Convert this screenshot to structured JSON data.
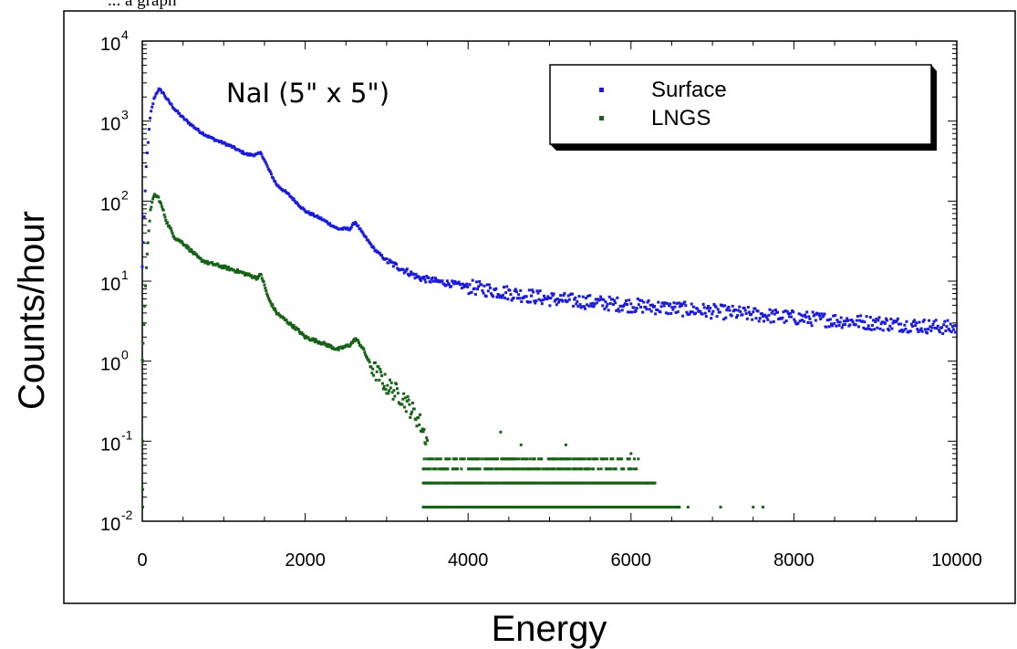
{
  "header_fragment": "... a graph",
  "chart_data": {
    "type": "scatter",
    "title": "",
    "annotation": "NaI (5\" x 5\")",
    "xlabel": "Energy",
    "ylabel": "Counts/hour",
    "xlim": [
      0,
      10000
    ],
    "ylim_log10": [
      -2,
      4
    ],
    "y_scale": "log",
    "x_ticks": [
      0,
      2000,
      4000,
      6000,
      8000,
      10000
    ],
    "x_tick_labels": [
      "0",
      "2000",
      "4000",
      "6000",
      "8000",
      "10000"
    ],
    "y_ticks": [
      {
        "base": "10",
        "exp": "4"
      },
      {
        "base": "10",
        "exp": "3"
      },
      {
        "base": "10",
        "exp": "2"
      },
      {
        "base": "10",
        "exp": "1"
      },
      {
        "base": "10",
        "exp": "0"
      },
      {
        "base": "10",
        "exp": "-1"
      },
      {
        "base": "10",
        "exp": "-2"
      }
    ],
    "legend_position": "top-right",
    "series": [
      {
        "name": "Surface",
        "color": "#1a1ad8",
        "points": [
          [
            0,
            15
          ],
          [
            50,
            300
          ],
          [
            100,
            1200
          ],
          [
            150,
            2000
          ],
          [
            200,
            2500
          ],
          [
            250,
            2300
          ],
          [
            300,
            1900
          ],
          [
            400,
            1400
          ],
          [
            500,
            1100
          ],
          [
            600,
            900
          ],
          [
            700,
            750
          ],
          [
            800,
            650
          ],
          [
            900,
            580
          ],
          [
            1000,
            530
          ],
          [
            1100,
            480
          ],
          [
            1200,
            420
          ],
          [
            1300,
            380
          ],
          [
            1400,
            380
          ],
          [
            1460,
            400
          ],
          [
            1550,
            250
          ],
          [
            1650,
            160
          ],
          [
            1800,
            120
          ],
          [
            2000,
            75
          ],
          [
            2200,
            60
          ],
          [
            2400,
            45
          ],
          [
            2550,
            45
          ],
          [
            2615,
            55
          ],
          [
            2700,
            40
          ],
          [
            2850,
            25
          ],
          [
            3000,
            18
          ],
          [
            3200,
            14
          ],
          [
            3400,
            11
          ],
          [
            3600,
            10
          ],
          [
            4000,
            8.5
          ],
          [
            5000,
            6
          ],
          [
            6000,
            5
          ],
          [
            7000,
            4.2
          ],
          [
            8000,
            3.5
          ],
          [
            9000,
            3
          ],
          [
            10000,
            2.6
          ]
        ]
      },
      {
        "name": "LNGS",
        "color": "#176217",
        "points": [
          [
            0,
            1
          ],
          [
            50,
            15
          ],
          [
            100,
            80
          ],
          [
            150,
            120
          ],
          [
            200,
            110
          ],
          [
            250,
            80
          ],
          [
            300,
            55
          ],
          [
            400,
            35
          ],
          [
            500,
            30
          ],
          [
            600,
            24
          ],
          [
            700,
            19
          ],
          [
            800,
            17
          ],
          [
            900,
            16
          ],
          [
            1000,
            15
          ],
          [
            1100,
            14
          ],
          [
            1200,
            13
          ],
          [
            1300,
            12
          ],
          [
            1400,
            11
          ],
          [
            1460,
            12
          ],
          [
            1550,
            6
          ],
          [
            1650,
            4
          ],
          [
            1800,
            3
          ],
          [
            1900,
            2.5
          ],
          [
            2000,
            2
          ],
          [
            2200,
            1.7
          ],
          [
            2400,
            1.4
          ],
          [
            2550,
            1.6
          ],
          [
            2620,
            1.9
          ],
          [
            2700,
            1.5
          ],
          [
            2800,
            0.9
          ],
          [
            3000,
            0.5
          ],
          [
            3200,
            0.35
          ],
          [
            3400,
            0.18
          ],
          [
            3500,
            0.1
          ]
        ],
        "background_levels": [
          {
            "level": 0.06,
            "xmin": 3450,
            "xmax": 6100
          },
          {
            "level": 0.045,
            "xmin": 3450,
            "xmax": 6100
          },
          {
            "level": 0.03,
            "xmin": 3450,
            "xmax": 6300
          },
          {
            "level": 0.015,
            "xmin": 3450,
            "xmax": 6600
          }
        ]
      }
    ]
  }
}
